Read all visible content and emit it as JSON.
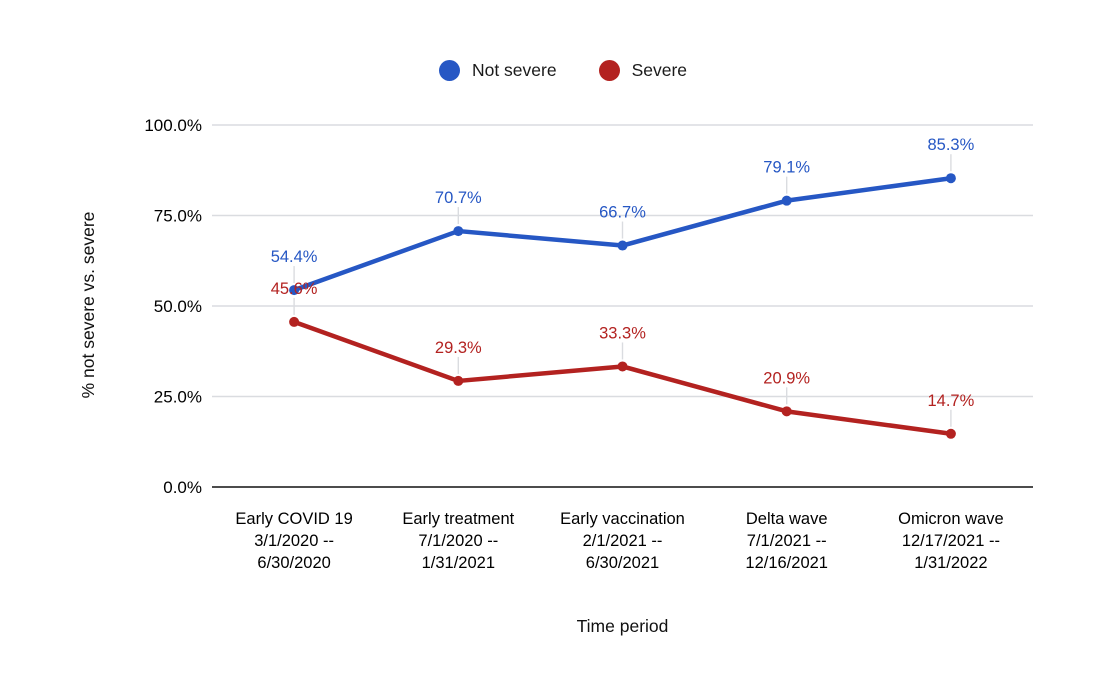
{
  "chart_data": {
    "type": "line",
    "title": "",
    "xlabel": "Time period",
    "ylabel": "% not severe vs. severe",
    "ylim": [
      0,
      100
    ],
    "grid": true,
    "legend_position": "top",
    "yticks": [
      {
        "value": 0,
        "label": "0.0%"
      },
      {
        "value": 25,
        "label": "25.0%"
      },
      {
        "value": 50,
        "label": "50.0%"
      },
      {
        "value": 75,
        "label": "75.0%"
      },
      {
        "value": 100,
        "label": "100.0%"
      }
    ],
    "categories": [
      {
        "lines": [
          "Early COVID 19",
          "3/1/2020 --",
          "6/30/2020"
        ]
      },
      {
        "lines": [
          "Early treatment",
          "7/1/2020 --",
          "1/31/2021"
        ]
      },
      {
        "lines": [
          "Early vaccination",
          "2/1/2021 --",
          "6/30/2021"
        ]
      },
      {
        "lines": [
          "Delta wave",
          "7/1/2021 --",
          "12/16/2021"
        ]
      },
      {
        "lines": [
          "Omicron wave",
          "12/17/2021 --",
          "1/31/2022"
        ]
      }
    ],
    "series": [
      {
        "name": "Not severe",
        "color": "#2657c4",
        "values": [
          54.4,
          70.7,
          66.7,
          79.1,
          85.3
        ],
        "labels": [
          "54.4%",
          "70.7%",
          "66.7%",
          "79.1%",
          "85.3%"
        ]
      },
      {
        "name": "Severe",
        "color": "#b32220",
        "values": [
          45.6,
          29.3,
          33.3,
          20.9,
          14.7
        ],
        "labels": [
          "45.6%",
          "29.3%",
          "33.3%",
          "20.9%",
          "14.7%"
        ]
      }
    ],
    "colors": {
      "grid": "#dadce0",
      "axis": "#333333",
      "tick_text": "#000000",
      "leader_line": "#dadce0",
      "background": "#ffffff"
    }
  }
}
